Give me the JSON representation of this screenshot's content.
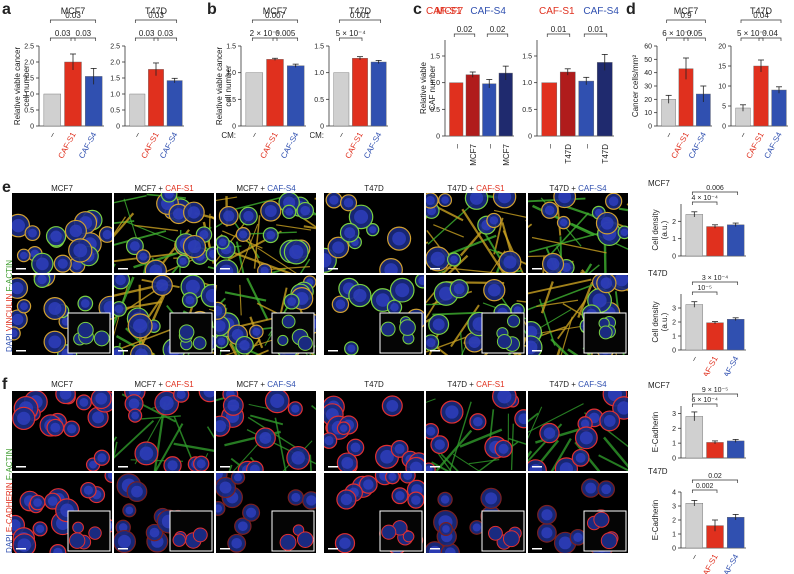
{
  "panels": {
    "a": "a",
    "b": "b",
    "c": "c",
    "d": "d",
    "e": "e",
    "f": "f"
  },
  "colors": {
    "grey": "#d0d0d0",
    "red": "#e0301e",
    "darkred": "#b01c1c",
    "blue": "#3050b0",
    "navy": "#1f2a6e"
  },
  "chart_data": [
    {
      "id": "a_mcf7",
      "type": "bar",
      "title": "MCF7",
      "ylabel": "Relative viable cancer cell number",
      "ylim": [
        0,
        2.5
      ],
      "yticks": [
        "0",
        "0.5",
        "1.0",
        "1.5",
        "2.0",
        "2.5"
      ],
      "categories": [
        "–",
        "CAF-S1",
        "CAF-S4"
      ],
      "values": [
        1.0,
        2.0,
        1.55
      ],
      "errors": [
        0,
        0.25,
        0.25
      ],
      "pvalues": [
        {
          "text": "0.03",
          "span": [
            0,
            1
          ]
        },
        {
          "text": "0.03",
          "span": [
            1,
            2
          ]
        },
        {
          "text": "0.03",
          "span": [
            0,
            2
          ]
        }
      ]
    },
    {
      "id": "a_t47d",
      "type": "bar",
      "title": "T47D",
      "ylim": [
        0,
        2.5
      ],
      "yticks": [
        "0",
        "0.5",
        "1.0",
        "1.5",
        "2.0",
        "2.5"
      ],
      "categories": [
        "–",
        "CAF-S1",
        "CAF-S4"
      ],
      "values": [
        1.0,
        1.77,
        1.42
      ],
      "errors": [
        0,
        0.2,
        0.07
      ],
      "pvalues": [
        {
          "text": "0.03",
          "span": [
            0,
            1
          ]
        },
        {
          "text": "0.03",
          "span": [
            1,
            2
          ]
        },
        {
          "text": "0.03",
          "span": [
            0,
            2
          ]
        }
      ]
    },
    {
      "id": "b_mcf7",
      "type": "bar",
      "title": "MCF7",
      "ylabel": "Relative viable cancer cell number",
      "xprefix": "CM:",
      "ylim": [
        0,
        1.5
      ],
      "yticks": [
        "0",
        "0.5",
        "1.0",
        "1.5"
      ],
      "categories": [
        "–",
        "CAF-S1",
        "CAF-S4"
      ],
      "values": [
        1.0,
        1.25,
        1.13
      ],
      "errors": [
        0,
        0.02,
        0.03
      ],
      "pvalues": [
        {
          "text": "2 × 10⁻⁶",
          "span": [
            0,
            1
          ]
        },
        {
          "text": "0.005",
          "span": [
            1,
            2
          ]
        },
        {
          "text": "0.007",
          "span": [
            0,
            2
          ]
        }
      ]
    },
    {
      "id": "b_t47d",
      "type": "bar",
      "title": "T47D",
      "xprefix": "CM:",
      "ylim": [
        0,
        1.5
      ],
      "yticks": [
        "0",
        "0.5",
        "1.0",
        "1.5"
      ],
      "categories": [
        "–",
        "CAF-S1",
        "CAF-S4"
      ],
      "values": [
        1.0,
        1.27,
        1.2
      ],
      "errors": [
        0,
        0.03,
        0.03
      ],
      "pvalues": [
        {
          "text": "5 × 10⁻⁴",
          "span": [
            0,
            1
          ]
        },
        {
          "text": "0.001",
          "span": [
            0,
            2
          ]
        }
      ]
    },
    {
      "id": "c_s1",
      "type": "bar",
      "ylabel": "Relative viable CAF number",
      "ylim": [
        0,
        1.8
      ],
      "yticks": [
        "0",
        "0.5",
        "1.0",
        "1.5"
      ],
      "categories": [
        "–",
        "MCF7",
        "–",
        "MCF7"
      ],
      "values": [
        1.0,
        1.15,
        0.98,
        1.18
      ],
      "errors": [
        0,
        0.05,
        0.08,
        0.13
      ],
      "pvalues": [
        {
          "text": "0.02",
          "span": [
            0,
            1
          ]
        },
        {
          "text": "0.02",
          "span": [
            2,
            3
          ]
        }
      ]
    },
    {
      "id": "c_s2",
      "type": "bar",
      "ylim": [
        0,
        1.8
      ],
      "yticks": [
        "0",
        "0.5",
        "1.0",
        "1.5"
      ],
      "categories": [
        "–",
        "T47D",
        "–",
        "T47D"
      ],
      "values": [
        1.0,
        1.2,
        1.03,
        1.38
      ],
      "errors": [
        0,
        0.06,
        0.07,
        0.15
      ],
      "pvalues": [
        {
          "text": "0.01",
          "span": [
            0,
            1
          ]
        },
        {
          "text": "0.01",
          "span": [
            2,
            3
          ]
        }
      ]
    },
    {
      "id": "d_mcf7",
      "type": "bar",
      "title": "MCF7",
      "ylabel": "Cancer cells/mm²",
      "ylim": [
        0,
        60
      ],
      "yticks": [
        "0",
        "10",
        "20",
        "30",
        "40",
        "50",
        "60"
      ],
      "categories": [
        "–",
        "CAF-S1",
        "CAF-S4"
      ],
      "values": [
        20,
        43,
        24
      ],
      "errors": [
        3,
        8,
        6
      ],
      "pvalues": [
        {
          "text": "6 × 10⁻⁴",
          "span": [
            0,
            1
          ]
        },
        {
          "text": "0.05",
          "span": [
            1,
            2
          ]
        },
        {
          "text": "0.9",
          "span": [
            0,
            2
          ]
        }
      ]
    },
    {
      "id": "d_t47d",
      "type": "bar",
      "title": "T47D",
      "ylim": [
        0,
        20
      ],
      "yticks": [
        "0",
        "5",
        "10",
        "15",
        "20"
      ],
      "categories": [
        "–",
        "CAF-S1",
        "CAF-S4"
      ],
      "values": [
        4.5,
        15,
        9
      ],
      "errors": [
        0.8,
        1.5,
        0.8
      ],
      "pvalues": [
        {
          "text": "5 × 10⁻⁴",
          "span": [
            0,
            1
          ]
        },
        {
          "text": "0.04",
          "span": [
            1,
            2
          ]
        },
        {
          "text": "0.04",
          "span": [
            0,
            2
          ]
        }
      ]
    },
    {
      "id": "e_mcf7",
      "type": "bar",
      "title": "MCF7",
      "ylabel": "Cell density (a.u.)",
      "ylim": [
        0,
        3
      ],
      "yticks": [
        "0",
        "1",
        "2"
      ],
      "categories": [
        "–",
        "CAF-S1",
        "CAF-S4"
      ],
      "values": [
        2.4,
        1.7,
        1.8
      ],
      "errors": [
        0.15,
        0.1,
        0.1
      ],
      "pvalues": [
        {
          "text": "4 × 10⁻⁴",
          "span": [
            0,
            1
          ]
        },
        {
          "text": "0.006",
          "span": [
            0,
            2
          ]
        }
      ]
    },
    {
      "id": "e_t47d",
      "type": "bar",
      "title": "T47D",
      "ylabel": "Cell density (a.u.)",
      "ylim": [
        0,
        4
      ],
      "yticks": [
        "0",
        "1",
        "2",
        "3"
      ],
      "categories": [
        "–",
        "CAF-S1",
        "CAF-S4"
      ],
      "values": [
        3.25,
        1.95,
        2.2
      ],
      "errors": [
        0.2,
        0.08,
        0.1
      ],
      "pvalues": [
        {
          "text": "10⁻⁵",
          "span": [
            0,
            1
          ]
        },
        {
          "text": "3 × 10⁻⁴",
          "span": [
            0,
            2
          ]
        }
      ],
      "xlabels": true
    },
    {
      "id": "f_mcf7",
      "type": "bar",
      "title": "MCF7",
      "ylabel": "E-Cadherin",
      "ylim": [
        0,
        3.5
      ],
      "yticks": [
        "0",
        "1",
        "2",
        "3"
      ],
      "categories": [
        "–",
        "CAF-S1",
        "CAF-S4"
      ],
      "values": [
        2.8,
        1.05,
        1.15
      ],
      "errors": [
        0.3,
        0.1,
        0.1
      ],
      "pvalues": [
        {
          "text": "6 × 10⁻⁴",
          "span": [
            0,
            1
          ]
        },
        {
          "text": "9 × 10⁻⁵",
          "span": [
            0,
            2
          ]
        }
      ]
    },
    {
      "id": "f_t47d",
      "type": "bar",
      "title": "T47D",
      "ylabel": "E-Cadherin",
      "ylim": [
        0,
        4
      ],
      "yticks": [
        "0",
        "1",
        "2",
        "3",
        "4"
      ],
      "categories": [
        "–",
        "CAF-S1",
        "CAF-S4"
      ],
      "values": [
        3.2,
        1.6,
        2.2
      ],
      "errors": [
        0.2,
        0.4,
        0.2
      ],
      "pvalues": [
        {
          "text": "0.002",
          "span": [
            0,
            1
          ]
        },
        {
          "text": "0.02",
          "span": [
            0,
            2
          ]
        }
      ],
      "xlabels": true
    }
  ],
  "microscopy": {
    "e_cols": [
      {
        "a": "MCF7",
        "b": "",
        "c": ""
      },
      {
        "a": "MCF7 + ",
        "b": "CAF-S1",
        "c": ""
      },
      {
        "a": "MCF7 + ",
        "b": "",
        "c": "CAF-S4"
      },
      {
        "a": "T47D",
        "b": "",
        "c": ""
      },
      {
        "a": "T47D + ",
        "b": "CAF-S1",
        "c": ""
      },
      {
        "a": "T47D + ",
        "b": "",
        "c": "CAF-S4"
      }
    ],
    "e_side": {
      "dapi": "DAPI ",
      "stain": "VINCULIN ",
      "factin": "F-ACTIN"
    },
    "f_side": {
      "dapi": "DAPI ",
      "stain": "E-CADHERIN ",
      "factin": "F-ACTIN"
    }
  }
}
